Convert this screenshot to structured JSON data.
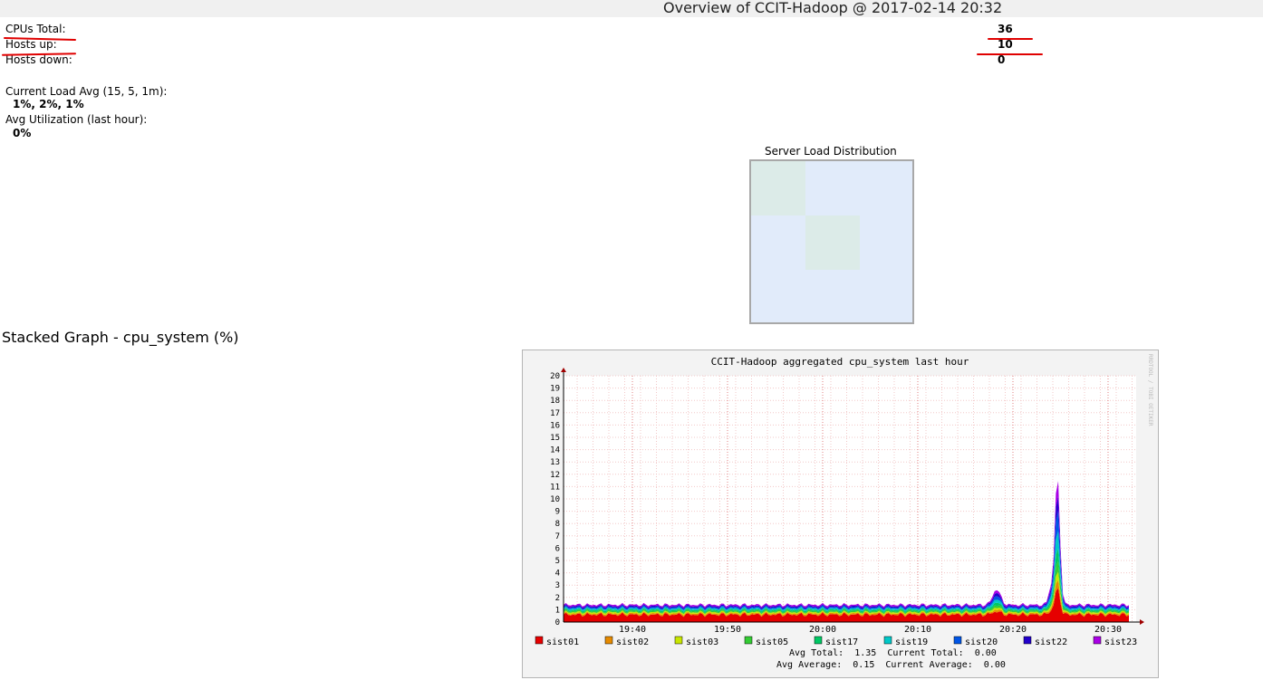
{
  "header": {
    "title": "Overview of CCIT-Hadoop @ 2017-02-14 20:32"
  },
  "summary": {
    "cpus_total_label": "CPUs Total:",
    "cpus_total_value": "36",
    "hosts_up_label": "Hosts up:",
    "hosts_up_value": "10",
    "hosts_down_label": "Hosts down:",
    "hosts_down_value": "0",
    "load_avg_label": "Current Load Avg (15, 5, 1m):",
    "load_avg_value": "1%, 2%, 1%",
    "avg_util_label": "Avg Utilization (last hour):",
    "avg_util_value": "0%"
  },
  "server_load": {
    "title": "Server Load Distribution"
  },
  "stacked": {
    "title": "Stacked Graph - cpu_system (%)"
  },
  "graph": {
    "title": "CCIT-Hadoop aggregated cpu_system last hour",
    "watermark": "RRDTOOL / TOBI OETIKER",
    "stats_line1": "Avg Total:  1.35  Current Total:  0.00",
    "stats_line2": "Avg Average:  0.15  Current Average:  0.00"
  },
  "chart_data": {
    "type": "area",
    "title": "CCIT-Hadoop aggregated cpu_system last hour",
    "ylim": [
      0,
      20
    ],
    "y_ticks": [
      "0",
      "1",
      "2",
      "3",
      "4",
      "5",
      "6",
      "7",
      "8",
      "9",
      "10",
      "11",
      "12",
      "13",
      "14",
      "15",
      "16",
      "17",
      "18",
      "19",
      "20"
    ],
    "x_ticks": [
      "19:40",
      "19:50",
      "20:00",
      "20:10",
      "20:20",
      "20:30"
    ],
    "grid": true,
    "legend_position": "bottom",
    "series": [
      {
        "name": "sist01",
        "color": "#e60000",
        "level": 0.6,
        "peak": 2.2
      },
      {
        "name": "sist02",
        "color": "#e68a00",
        "level": 0.1,
        "peak": 0.6
      },
      {
        "name": "sist03",
        "color": "#c8e600",
        "level": 0.1,
        "peak": 0.6
      },
      {
        "name": "sist05",
        "color": "#33cc33",
        "level": 0.1,
        "peak": 0.8
      },
      {
        "name": "sist17",
        "color": "#00c864",
        "level": 0.1,
        "peak": 1.0
      },
      {
        "name": "sist19",
        "color": "#00c8c8",
        "level": 0.1,
        "peak": 1.4
      },
      {
        "name": "sist20",
        "color": "#0055e6",
        "level": 0.1,
        "peak": 1.6
      },
      {
        "name": "sist22",
        "color": "#2200cc",
        "level": 0.1,
        "peak": 1.2
      },
      {
        "name": "sist23",
        "color": "#aa00e6",
        "level": 0.1,
        "peak": 1.2
      }
    ]
  }
}
